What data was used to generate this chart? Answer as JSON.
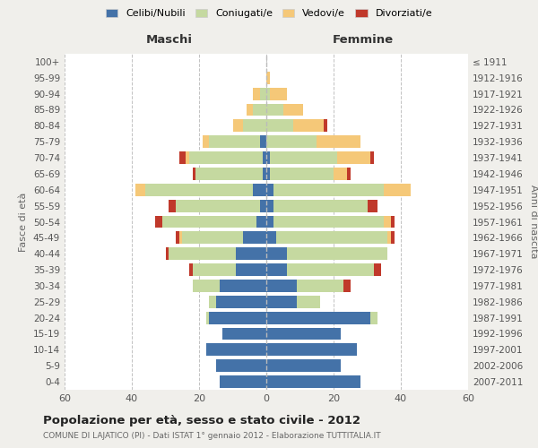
{
  "age_groups": [
    "0-4",
    "5-9",
    "10-14",
    "15-19",
    "20-24",
    "25-29",
    "30-34",
    "35-39",
    "40-44",
    "45-49",
    "50-54",
    "55-59",
    "60-64",
    "65-69",
    "70-74",
    "75-79",
    "80-84",
    "85-89",
    "90-94",
    "95-99",
    "100+"
  ],
  "birth_years": [
    "2007-2011",
    "2002-2006",
    "1997-2001",
    "1992-1996",
    "1987-1991",
    "1982-1986",
    "1977-1981",
    "1972-1976",
    "1967-1971",
    "1962-1966",
    "1957-1961",
    "1952-1956",
    "1947-1951",
    "1942-1946",
    "1937-1941",
    "1932-1936",
    "1927-1931",
    "1922-1926",
    "1917-1921",
    "1912-1916",
    "≤ 1911"
  ],
  "maschi": {
    "celibi": [
      14,
      15,
      18,
      13,
      17,
      15,
      14,
      9,
      9,
      7,
      3,
      2,
      4,
      1,
      1,
      2,
      0,
      0,
      0,
      0,
      0
    ],
    "coniugati": [
      0,
      0,
      0,
      0,
      1,
      2,
      8,
      13,
      20,
      18,
      28,
      25,
      32,
      20,
      22,
      15,
      7,
      4,
      2,
      0,
      0
    ],
    "vedovi": [
      0,
      0,
      0,
      0,
      0,
      0,
      0,
      0,
      0,
      1,
      0,
      0,
      3,
      0,
      1,
      2,
      3,
      2,
      2,
      0,
      0
    ],
    "divorziati": [
      0,
      0,
      0,
      0,
      0,
      0,
      0,
      1,
      1,
      1,
      2,
      2,
      0,
      1,
      2,
      0,
      0,
      0,
      0,
      0,
      0
    ]
  },
  "femmine": {
    "nubili": [
      28,
      22,
      27,
      22,
      31,
      9,
      9,
      6,
      6,
      3,
      2,
      2,
      2,
      1,
      1,
      0,
      0,
      0,
      0,
      0,
      0
    ],
    "coniugate": [
      0,
      0,
      0,
      0,
      2,
      7,
      14,
      26,
      30,
      33,
      33,
      28,
      33,
      19,
      20,
      15,
      8,
      5,
      1,
      0,
      0
    ],
    "vedove": [
      0,
      0,
      0,
      0,
      0,
      0,
      0,
      0,
      0,
      1,
      2,
      0,
      8,
      4,
      10,
      13,
      9,
      6,
      5,
      1,
      0
    ],
    "divorziate": [
      0,
      0,
      0,
      0,
      0,
      0,
      2,
      2,
      0,
      1,
      1,
      3,
      0,
      1,
      1,
      0,
      1,
      0,
      0,
      0,
      0
    ]
  },
  "colors": {
    "celibi": "#4472a8",
    "coniugati": "#c5d9a0",
    "vedovi": "#f5c878",
    "divorziati": "#c0392b"
  },
  "xlim": [
    -60,
    60
  ],
  "xticks": [
    -60,
    -40,
    -20,
    0,
    20,
    40,
    60
  ],
  "xticklabels": [
    "60",
    "40",
    "20",
    "0",
    "20",
    "40",
    "60"
  ],
  "title": "Popolazione per età, sesso e stato civile - 2012",
  "subtitle": "COMUNE DI LAJATICO (PI) - Dati ISTAT 1° gennaio 2012 - Elaborazione TUTTITALIA.IT",
  "ylabel_left": "Fasce di età",
  "ylabel_right": "Anni di nascita",
  "label_maschi": "Maschi",
  "label_femmine": "Femmine",
  "legend_labels": [
    "Celibi/Nubili",
    "Coniugati/e",
    "Vedovi/e",
    "Divorziati/e"
  ],
  "bar_height": 0.78,
  "background_color": "#f0efeb",
  "plot_bg_color": "#ffffff"
}
